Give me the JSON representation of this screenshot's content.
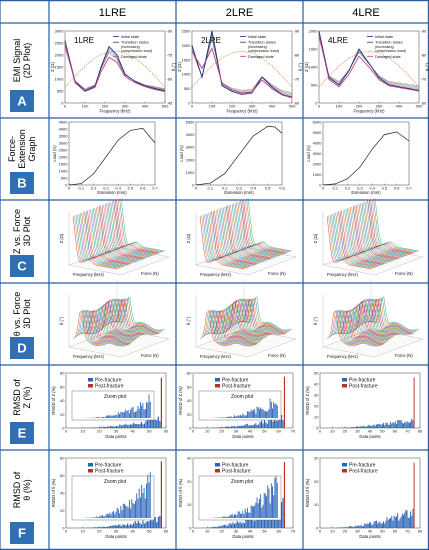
{
  "columns": [
    "1LRE",
    "2LRE",
    "4LRE"
  ],
  "rows": [
    {
      "letter": "A",
      "label_lines": [
        "EMI Signal",
        "(2D Plot)"
      ]
    },
    {
      "letter": "B",
      "label_lines": [
        "Force-",
        "Extension",
        "Graph"
      ]
    },
    {
      "letter": "C",
      "label_lines": [
        "Z vs. Force",
        "3D Plot"
      ]
    },
    {
      "letter": "D",
      "label_lines": [
        "θ vs. Force",
        "3D Plot"
      ]
    },
    {
      "letter": "E",
      "label_lines": [
        "RMSD of",
        "Z (%)"
      ]
    },
    {
      "letter": "F",
      "label_lines": [
        "RMSD of",
        "θ (%)"
      ]
    }
  ],
  "colors": {
    "letter_box": "#2e6fb6",
    "pre_fracture": "#2a64b8",
    "post_fracture": "#b5322c",
    "trace_main": "#1f2f8a",
    "trace_transition": "#3a3a3a",
    "trace_damaged": "#c0407c",
    "theta_axis": "#e0762b"
  },
  "chart_data": [
    {
      "type": "line",
      "row": "A",
      "x_axis_label": "Frequency (kHz)",
      "y_left_label": "Z (Ω)",
      "y_right_label": "θ (°)",
      "legend": [
        "Initial state",
        "Transition states (increasing compression load)",
        "Damaged state"
      ],
      "panels": [
        {
          "inset_label": "1LRE",
          "x_ticks": [
            "0",
            "100",
            "200",
            "300",
            "400",
            "500"
          ],
          "y_ticks": [
            "0",
            "500",
            "1000",
            "1500",
            "2000",
            "2500",
            "3000"
          ],
          "y_right_ticks": [
            "-45",
            "-60",
            "-75",
            "-90"
          ],
          "x": [
            0,
            50,
            100,
            150,
            180,
            220,
            260,
            300,
            350,
            400,
            450,
            500
          ],
          "z_initial": [
            2600,
            900,
            500,
            700,
            1500,
            2350,
            2000,
            1200,
            900,
            700,
            600,
            500
          ],
          "z_damaged": [
            2500,
            850,
            480,
            650,
            1300,
            1900,
            1700,
            1100,
            850,
            680,
            560,
            480
          ]
        },
        {
          "inset_label": "2LRE",
          "x_ticks": [
            "0",
            "100",
            "200",
            "300",
            "400",
            "500"
          ],
          "y_ticks": [
            "0",
            "500",
            "1000",
            "1500",
            "2000",
            "2500"
          ],
          "y_right_ticks": [
            "-60",
            "-70",
            "-80",
            "-90"
          ],
          "x": [
            0,
            50,
            100,
            150,
            200,
            250,
            300,
            350,
            400,
            450,
            500
          ],
          "z_initial": [
            2000,
            900,
            2500,
            600,
            400,
            300,
            350,
            900,
            550,
            300,
            200
          ],
          "z_damaged": [
            1800,
            1200,
            1900,
            700,
            450,
            350,
            380,
            800,
            500,
            280,
            180
          ]
        },
        {
          "inset_label": "4LRE",
          "x_ticks": [
            "0",
            "100",
            "200",
            "300",
            "400",
            "500"
          ],
          "y_ticks": [
            "0",
            "500",
            "1000",
            "1500",
            "2000"
          ],
          "y_right_ticks": [
            "-60",
            "-70",
            "-80",
            "-90"
          ],
          "x": [
            0,
            50,
            100,
            150,
            200,
            250,
            300,
            350,
            400,
            450,
            500
          ],
          "z_initial": [
            2000,
            700,
            500,
            900,
            1500,
            1100,
            700,
            500,
            450,
            400,
            350
          ],
          "z_damaged": [
            1900,
            650,
            450,
            800,
            1300,
            1000,
            650,
            480,
            430,
            380,
            330
          ]
        }
      ]
    },
    {
      "type": "line",
      "row": "B",
      "x_axis_label": "Extension (mm)",
      "y_axis_label": "Load (N)",
      "panels": [
        {
          "x": [
            0,
            0.1,
            0.2,
            0.3,
            0.4,
            0.5,
            0.6,
            0.7
          ],
          "y": [
            0,
            100,
            800,
            2000,
            3200,
            3900,
            4050,
            3000
          ],
          "x_ticks": [
            "0",
            "0.1",
            "0.2",
            "0.3",
            "0.4",
            "0.5",
            "0.6",
            "0.7"
          ],
          "y_ticks": [
            "0",
            "500",
            "1000",
            "1500",
            "2000",
            "2500",
            "3000",
            "3500",
            "4000",
            "4500"
          ],
          "xlim": [
            0,
            0.7
          ],
          "ylim": [
            0,
            4500
          ]
        },
        {
          "x": [
            0,
            0.1,
            0.2,
            0.3,
            0.4,
            0.5,
            0.55,
            0.6
          ],
          "y": [
            0,
            150,
            900,
            2400,
            3900,
            4650,
            4600,
            4100
          ],
          "x_ticks": [
            "0",
            "0.1",
            "0.2",
            "0.3",
            "0.4",
            "0.5",
            "0.6"
          ],
          "y_ticks": [
            "0",
            "1000",
            "2000",
            "3000",
            "4000",
            "5000"
          ],
          "xlim": [
            0,
            0.6
          ],
          "ylim": [
            0,
            5000
          ]
        },
        {
          "x": [
            0,
            0.1,
            0.2,
            0.3,
            0.4,
            0.5,
            0.6,
            0.7
          ],
          "y": [
            0,
            100,
            600,
            1700,
            3400,
            4800,
            5050,
            4200
          ],
          "x_ticks": [
            "0",
            "0.1",
            "0.2",
            "0.3",
            "0.4",
            "0.5",
            "0.6",
            "0.7"
          ],
          "y_ticks": [
            "0",
            "1000",
            "2000",
            "3000",
            "4000",
            "5000",
            "6000"
          ],
          "xlim": [
            0,
            0.7
          ],
          "ylim": [
            0,
            6000
          ]
        }
      ]
    },
    {
      "type": "surface",
      "row": "C",
      "x_axis_label": "Frequency (kHz)",
      "y_axis_label": "Force (N)",
      "z_axis_label": "Z (Ω)"
    },
    {
      "type": "surface",
      "row": "D",
      "x_axis_label": "Frequency (kHz)",
      "y_axis_label": "Force (N)",
      "z_axis_label": "θ (°)"
    },
    {
      "type": "bar",
      "row": "E",
      "x_axis_label": "Data points",
      "y_axis_label": "RMSD of Z (%)",
      "legend": [
        "Pre-fracture",
        "Post-fracture"
      ],
      "panels": [
        {
          "n": 62,
          "xlim": [
            0,
            65
          ],
          "ylim": [
            0,
            90
          ],
          "x_ticks": [
            "0",
            "10",
            "20",
            "30",
            "40",
            "50",
            "60"
          ],
          "y_ticks": [
            "0",
            "20",
            "40",
            "60",
            "80"
          ],
          "zoom_label": "Zoom plot",
          "final_value": 82,
          "max_pre": 14
        },
        {
          "n": 64,
          "xlim": [
            0,
            70
          ],
          "ylim": [
            0,
            90
          ],
          "x_ticks": [
            "0",
            "10",
            "20",
            "30",
            "40",
            "50",
            "60",
            "70"
          ],
          "y_ticks": [
            "0",
            "20",
            "40",
            "60",
            "80"
          ],
          "zoom_label": "Zoom plot",
          "final_value": 84,
          "max_pre": 16
        },
        {
          "n": 80,
          "xlim": [
            0,
            85
          ],
          "ylim": [
            0,
            50
          ],
          "x_ticks": [
            "0",
            "10",
            "20",
            "30",
            "40",
            "50",
            "60",
            "70",
            "80"
          ],
          "y_ticks": [
            "0",
            "10",
            "20",
            "30",
            "40",
            "50"
          ],
          "zoom_label": "",
          "final_value": 46,
          "max_pre": 8
        }
      ]
    },
    {
      "type": "bar",
      "row": "F",
      "x_axis_label": "Data points",
      "y_axis_label": "RMSD of θ (%)",
      "legend": [
        "Pre-fracture",
        "Post-fracture"
      ],
      "panels": [
        {
          "n": 62,
          "xlim": [
            0,
            65
          ],
          "ylim": [
            0,
            80
          ],
          "x_ticks": [
            "0",
            "10",
            "20",
            "30",
            "40",
            "50",
            "60"
          ],
          "y_ticks": [
            "0",
            "20",
            "40",
            "60",
            "80"
          ],
          "zoom_label": "Zoom plot",
          "final_value": 76,
          "max_pre": 11
        },
        {
          "n": 64,
          "xlim": [
            0,
            70
          ],
          "ylim": [
            0,
            35
          ],
          "x_ticks": [
            "0",
            "10",
            "20",
            "30",
            "40",
            "50",
            "60",
            "70"
          ],
          "y_ticks": [
            "0",
            "10",
            "20",
            "30"
          ],
          "zoom_label": "Zoom plot",
          "final_value": 33,
          "max_pre": 13
        },
        {
          "n": 80,
          "xlim": [
            0,
            85
          ],
          "ylim": [
            0,
            30
          ],
          "x_ticks": [
            "0",
            "10",
            "20",
            "30",
            "40",
            "50",
            "60",
            "70",
            "80"
          ],
          "y_ticks": [
            "0",
            "10",
            "20",
            "30"
          ],
          "zoom_label": "",
          "final_value": 28,
          "max_pre": 7
        }
      ]
    }
  ]
}
